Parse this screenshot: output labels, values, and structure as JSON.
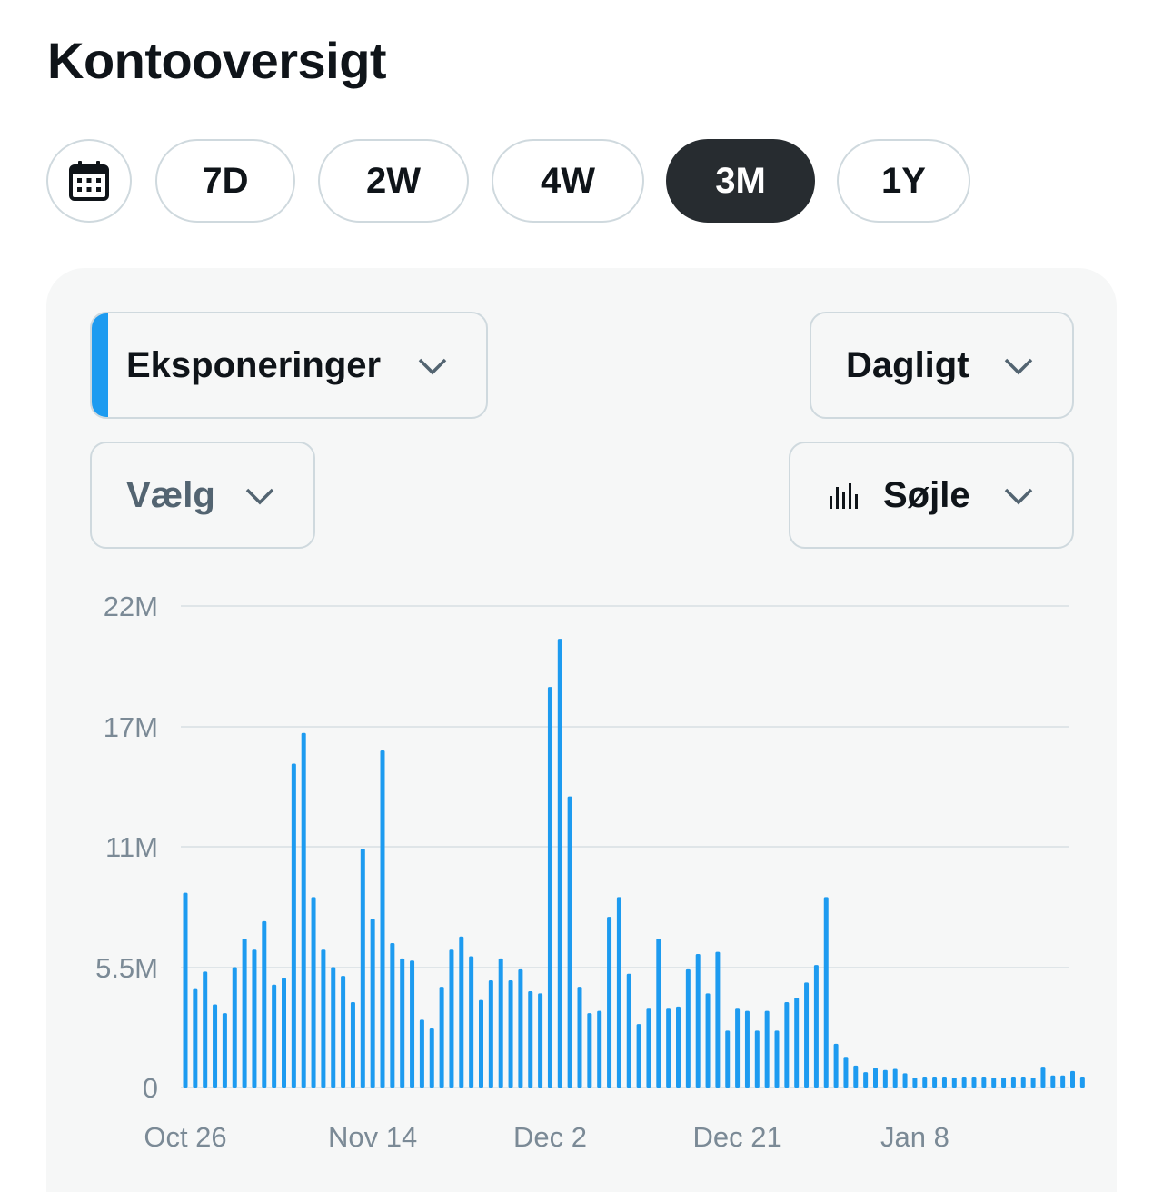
{
  "page": {
    "title": "Kontooversigt"
  },
  "range": {
    "calendar_icon": "calendar-icon",
    "options": [
      "7D",
      "2W",
      "4W",
      "3M",
      "1Y"
    ],
    "active": "3M"
  },
  "controls": {
    "metric": "Eksponeringer",
    "interval": "Dagligt",
    "compare": "Vælg",
    "chart_type": "Søjle",
    "chart_type_icon": "bar-chart-icon",
    "accent_color": "#1d9bf0"
  },
  "chart_data": {
    "type": "bar",
    "color": "#1d9bf0",
    "y_ticks": [
      {
        "value": 0,
        "label": "0"
      },
      {
        "value": 5.5,
        "label": "5.5M"
      },
      {
        "value": 11,
        "label": "11M"
      },
      {
        "value": 16.5,
        "label": "17M"
      },
      {
        "value": 22,
        "label": "22M"
      }
    ],
    "ylim": [
      0,
      22
    ],
    "y_unit": "M",
    "x_tick_labels": [
      {
        "index": 0,
        "label": "Oct 26"
      },
      {
        "index": 19,
        "label": "Nov 14"
      },
      {
        "index": 37,
        "label": "Dec 2"
      },
      {
        "index": 56,
        "label": "Dec 21"
      },
      {
        "index": 74,
        "label": "Jan 8"
      }
    ],
    "grid": true,
    "values": [
      8.9,
      4.5,
      5.3,
      3.8,
      3.4,
      5.5,
      6.8,
      6.3,
      7.6,
      4.7,
      5.0,
      14.8,
      16.2,
      8.7,
      6.3,
      5.5,
      5.1,
      3.9,
      10.9,
      7.7,
      15.4,
      6.6,
      5.9,
      5.8,
      3.1,
      2.7,
      4.6,
      6.3,
      6.9,
      6.0,
      4.0,
      4.9,
      5.9,
      4.9,
      5.4,
      4.4,
      4.3,
      18.3,
      20.5,
      13.3,
      4.6,
      3.4,
      3.5,
      7.8,
      8.7,
      5.2,
      2.9,
      3.6,
      6.8,
      3.6,
      3.7,
      5.4,
      6.1,
      4.3,
      6.2,
      2.6,
      3.6,
      3.5,
      2.6,
      3.5,
      2.6,
      3.9,
      4.1,
      4.8,
      5.6,
      8.7,
      2.0,
      1.4,
      1.0,
      0.7,
      0.9,
      0.8,
      0.85,
      0.65,
      0.45,
      0.5,
      0.5,
      0.5,
      0.45,
      0.5,
      0.5,
      0.5,
      0.45,
      0.45,
      0.5,
      0.5,
      0.45,
      0.95,
      0.55,
      0.55,
      0.75,
      0.5
    ]
  }
}
